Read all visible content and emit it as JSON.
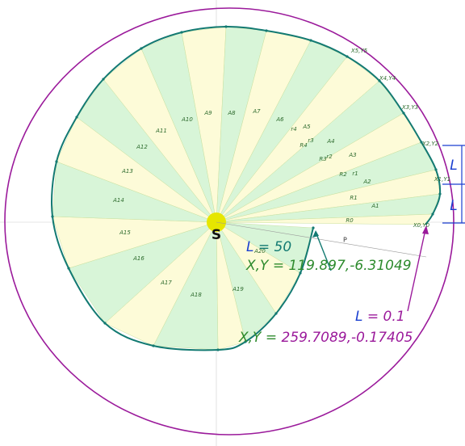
{
  "center_label": "S",
  "area_labels": [
    "A1",
    "A2",
    "A3",
    "A4",
    "A5",
    "A6",
    "A7",
    "A8",
    "A9",
    "A10",
    "A11",
    "A12",
    "A13",
    "A14",
    "A15",
    "A16",
    "A17",
    "A18",
    "A19",
    "A20"
  ],
  "radius_labels": [
    "R0",
    "R1",
    "R2",
    "R3",
    "R4"
  ],
  "small_r_labels": [
    "r1",
    "r2",
    "r3",
    "r4"
  ],
  "point_labels": [
    "X0,Y0",
    "X1,Y1",
    "X2,Y2",
    "X3,Y3",
    "X4,Y4",
    "X5,Y5"
  ],
  "p_label": "P",
  "dimension_labels": [
    "L",
    "L"
  ],
  "start_annotation": {
    "l_symbol": "L",
    "l_value": "= 50",
    "xy_text": "X,Y = 119.897,-6.31049"
  },
  "end_annotation": {
    "l_symbol": "L",
    "l_value": "= 0.1",
    "xy_prefix": "X,Y =",
    "xy_value": "259.7089,-0.17405"
  }
}
